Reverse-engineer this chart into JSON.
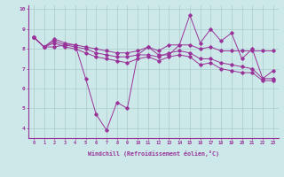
{
  "xlabel": "Windchill (Refroidissement éolien,°C)",
  "xlim": [
    -0.5,
    23.5
  ],
  "ylim": [
    3.5,
    10.2
  ],
  "yticks": [
    4,
    5,
    6,
    7,
    8,
    9,
    10
  ],
  "xticks": [
    0,
    1,
    2,
    3,
    4,
    5,
    6,
    7,
    8,
    9,
    10,
    11,
    12,
    13,
    14,
    15,
    16,
    17,
    18,
    19,
    20,
    21,
    22,
    23
  ],
  "bg_color": "#cce8e8",
  "grid_color": "#aacccc",
  "line_color": "#993399",
  "line1_x": [
    0,
    1,
    2,
    3,
    4,
    5,
    6,
    7,
    8,
    9,
    10,
    11,
    12,
    13,
    14,
    15,
    16,
    17,
    18,
    19,
    20,
    21,
    22,
    23
  ],
  "line1_y": [
    8.6,
    8.1,
    8.1,
    8.2,
    8.2,
    6.5,
    4.7,
    3.9,
    5.3,
    5.0,
    7.7,
    8.1,
    7.7,
    7.7,
    8.2,
    9.7,
    8.3,
    9.0,
    8.4,
    8.8,
    7.5,
    8.0,
    6.5,
    6.9
  ],
  "line2_x": [
    0,
    1,
    2,
    3,
    4,
    5,
    6,
    7,
    8,
    9,
    10,
    11,
    12,
    13,
    14,
    15,
    16,
    17,
    18,
    19,
    20,
    21,
    22,
    23
  ],
  "line2_y": [
    8.6,
    8.1,
    8.5,
    8.3,
    8.2,
    8.1,
    8.0,
    7.9,
    7.8,
    7.8,
    7.9,
    8.1,
    7.9,
    8.2,
    8.2,
    8.2,
    8.0,
    8.1,
    7.9,
    7.9,
    7.9,
    7.9,
    7.9,
    7.9
  ],
  "line3_x": [
    0,
    1,
    2,
    3,
    4,
    5,
    6,
    7,
    8,
    9,
    10,
    11,
    12,
    13,
    14,
    15,
    16,
    17,
    18,
    19,
    20,
    21,
    22,
    23
  ],
  "line3_y": [
    8.6,
    8.1,
    8.4,
    8.2,
    8.1,
    8.0,
    7.8,
    7.7,
    7.6,
    7.6,
    7.7,
    7.7,
    7.6,
    7.8,
    7.9,
    7.8,
    7.5,
    7.5,
    7.3,
    7.2,
    7.1,
    7.0,
    6.5,
    6.5
  ],
  "line4_x": [
    0,
    1,
    2,
    3,
    4,
    5,
    6,
    7,
    8,
    9,
    10,
    11,
    12,
    13,
    14,
    15,
    16,
    17,
    18,
    19,
    20,
    21,
    22,
    23
  ],
  "line4_y": [
    8.6,
    8.1,
    8.3,
    8.1,
    8.0,
    7.8,
    7.6,
    7.5,
    7.4,
    7.3,
    7.5,
    7.6,
    7.4,
    7.6,
    7.7,
    7.6,
    7.2,
    7.3,
    7.0,
    6.9,
    6.8,
    6.8,
    6.4,
    6.4
  ]
}
